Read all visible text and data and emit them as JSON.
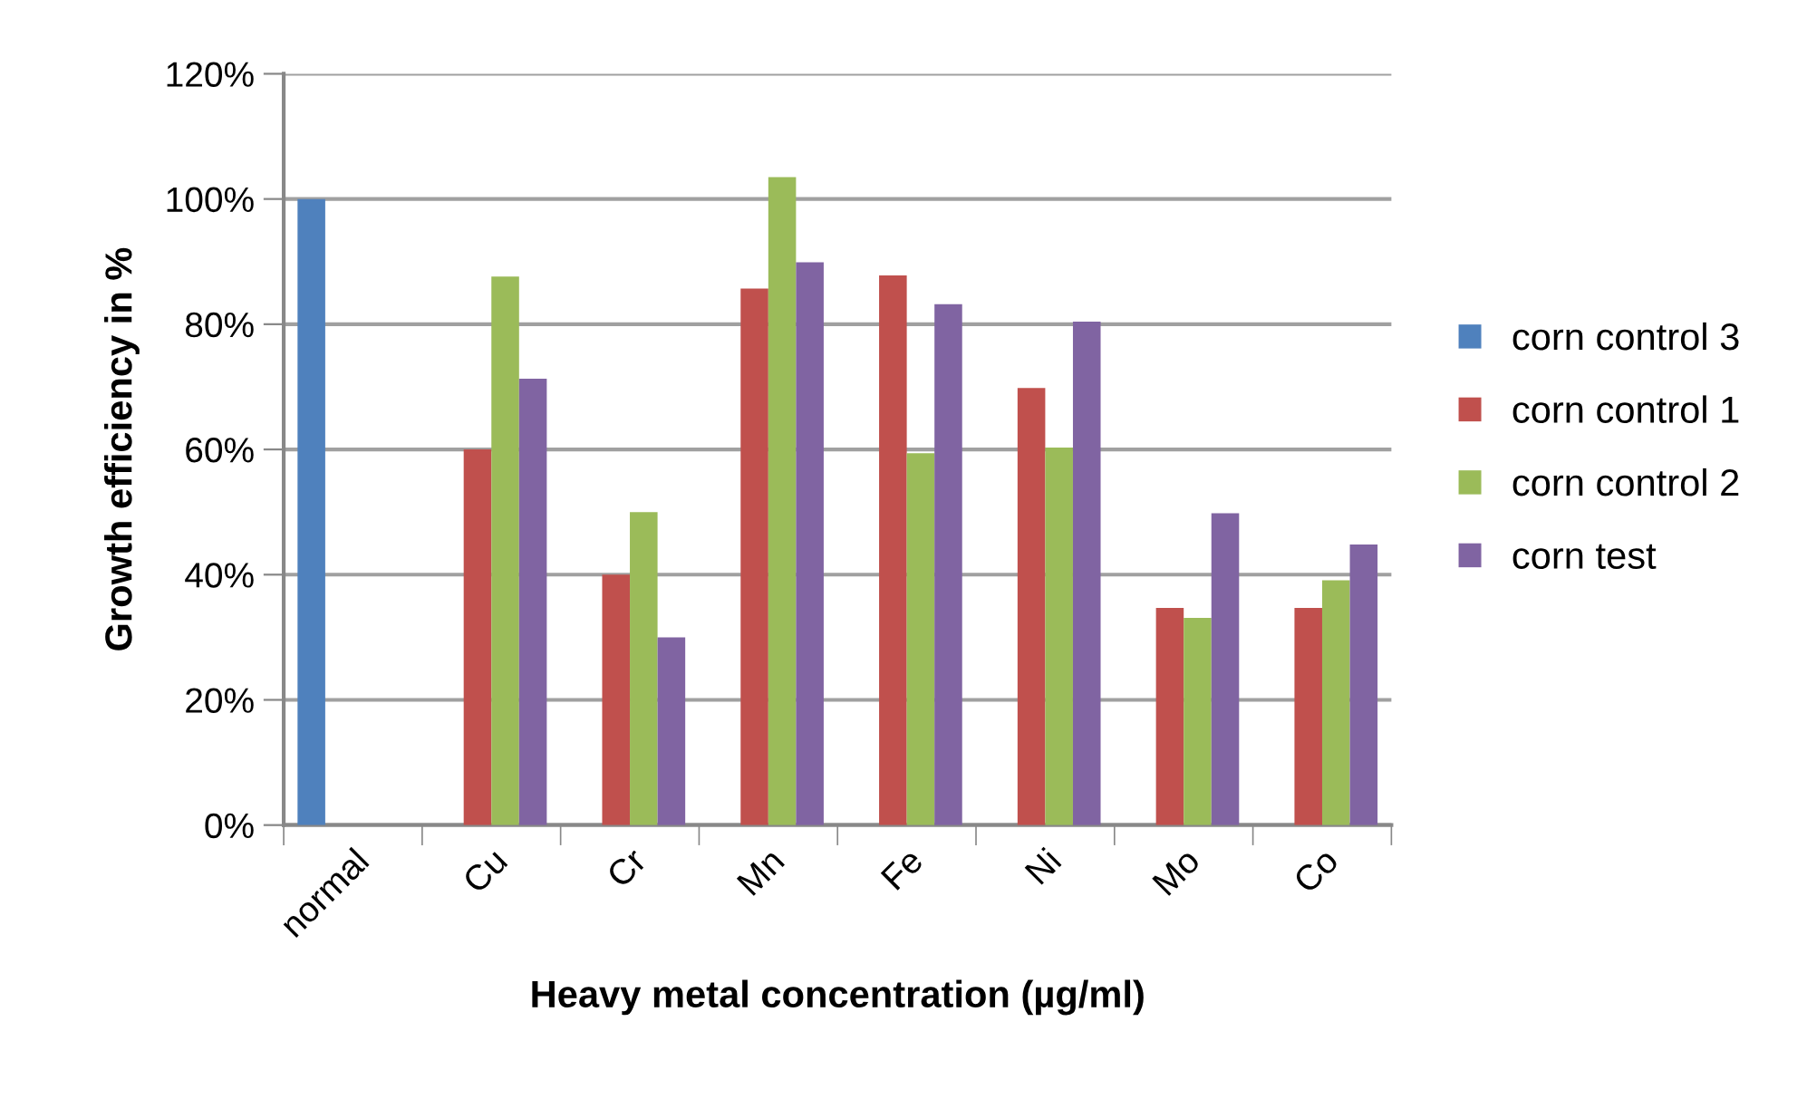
{
  "chart_data": {
    "type": "bar",
    "xlabel": "Heavy metal concentration (µg/ml)",
    "ylabel": "Growth efficiency in %",
    "categories": [
      "normal",
      "Cu",
      "Cr",
      "Mn",
      "Fe",
      "Ni",
      "Mo",
      "Co"
    ],
    "series": [
      {
        "name": "corn control 3",
        "color": "#4f81bd",
        "values": [
          100,
          null,
          null,
          null,
          null,
          null,
          null,
          null
        ]
      },
      {
        "name": "corn control 1",
        "color": "#c0504d",
        "values": [
          null,
          60,
          40,
          85.7,
          87.8,
          69.8,
          34.7,
          34.7
        ]
      },
      {
        "name": "corn control 2",
        "color": "#9bbb59",
        "values": [
          null,
          87.6,
          50,
          103.5,
          59.4,
          60.3,
          33.1,
          39.1
        ]
      },
      {
        "name": "corn test",
        "color": "#8064a2",
        "values": [
          null,
          71.3,
          30,
          89.9,
          83.2,
          80.4,
          49.8,
          44.8
        ]
      }
    ],
    "ylim": [
      0,
      120
    ],
    "yticks": [
      {
        "value": 0,
        "label": "0%"
      },
      {
        "value": 20,
        "label": "20%"
      },
      {
        "value": 40,
        "label": "40%"
      },
      {
        "value": 60,
        "label": "60%"
      },
      {
        "value": 80,
        "label": "80%"
      },
      {
        "value": 100,
        "label": "100%"
      },
      {
        "value": 120,
        "label": "120%"
      }
    ],
    "grid": "y",
    "legend": "right"
  }
}
